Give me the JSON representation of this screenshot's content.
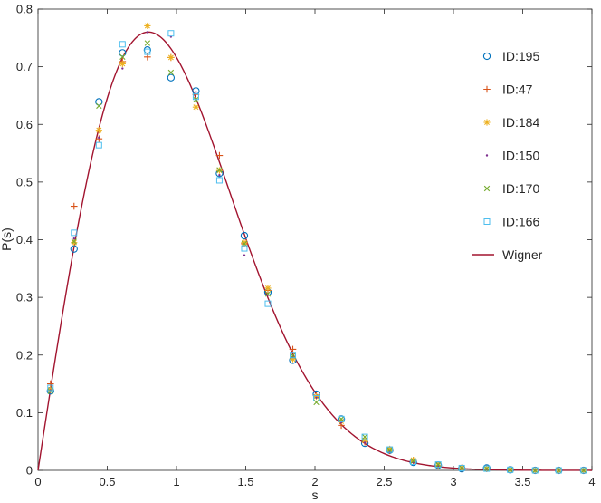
{
  "chart_data": {
    "type": "scatter",
    "title": "",
    "xlabel": "s",
    "ylabel": "P(s)",
    "xlim": [
      0,
      4
    ],
    "ylim": [
      0,
      0.8
    ],
    "xticks": [
      "0",
      "0.5",
      "1",
      "1.5",
      "2",
      "2.5",
      "3",
      "3.5",
      "4"
    ],
    "yticks": [
      "0",
      "0.1",
      "0.2",
      "0.3",
      "0.4",
      "0.5",
      "0.6",
      "0.7",
      "0.8"
    ],
    "grid": false,
    "legend_position": "top-right",
    "x": [
      0.09,
      0.26,
      0.44,
      0.61,
      0.79,
      0.96,
      1.14,
      1.31,
      1.49,
      1.66,
      1.84,
      2.01,
      2.19,
      2.36,
      2.54,
      2.71,
      2.89,
      3.06,
      3.24,
      3.41,
      3.59,
      3.76,
      3.94
    ],
    "series": [
      {
        "name": "ID:195",
        "marker": "circle",
        "color": "#0072BD",
        "values": [
          0.138,
          0.384,
          0.639,
          0.724,
          0.729,
          0.681,
          0.658,
          0.515,
          0.407,
          0.309,
          0.191,
          0.132,
          0.089,
          0.047,
          0.035,
          0.014,
          0.009,
          0.003,
          0.004,
          0.001,
          0,
          0,
          0
        ]
      },
      {
        "name": "ID:47",
        "marker": "plus",
        "color": "#D95319",
        "values": [
          0.15,
          0.458,
          0.575,
          0.709,
          0.717,
          0.716,
          0.652,
          0.546,
          0.393,
          0.312,
          0.21,
          0.13,
          0.078,
          0.049,
          0.034,
          0.017,
          0.008,
          0.004,
          0.003,
          0.001,
          0,
          0,
          0
        ]
      },
      {
        "name": "ID:184",
        "marker": "asterisk",
        "color": "#EDB120",
        "values": [
          0.14,
          0.395,
          0.59,
          0.705,
          0.771,
          0.716,
          0.63,
          0.52,
          0.395,
          0.316,
          0.193,
          0.128,
          0.085,
          0.052,
          0.037,
          0.018,
          0.009,
          0.004,
          0.003,
          0.001,
          0,
          0,
          0
        ]
      },
      {
        "name": "ID:150",
        "marker": "point",
        "color": "#7E2F8E",
        "values": [
          0.139,
          0.402,
          0.577,
          0.697,
          0.76,
          0.752,
          0.656,
          0.512,
          0.373,
          0.304,
          0.197,
          0.126,
          0.083,
          0.048,
          0.032,
          0.014,
          0.008,
          0.003,
          0.002,
          0.001,
          0,
          0,
          0
        ]
      },
      {
        "name": "ID:170",
        "marker": "cross",
        "color": "#77AC30",
        "values": [
          0.137,
          0.397,
          0.632,
          0.717,
          0.741,
          0.69,
          0.643,
          0.521,
          0.393,
          0.306,
          0.199,
          0.118,
          0.089,
          0.058,
          0.035,
          0.016,
          0.01,
          0.004,
          0.003,
          0.001,
          0,
          0,
          0
        ]
      },
      {
        "name": "ID:166",
        "marker": "square",
        "color": "#4DBEEE",
        "values": [
          0.143,
          0.412,
          0.564,
          0.739,
          0.726,
          0.758,
          0.648,
          0.503,
          0.385,
          0.289,
          0.2,
          0.125,
          0.089,
          0.058,
          0.036,
          0.015,
          0.01,
          0.004,
          0.003,
          0.001,
          0,
          0,
          0
        ]
      }
    ],
    "curve": {
      "name": "Wigner",
      "color": "#A2142F",
      "formula": "(pi/2)*s*exp(-pi*s^2/4)"
    }
  }
}
